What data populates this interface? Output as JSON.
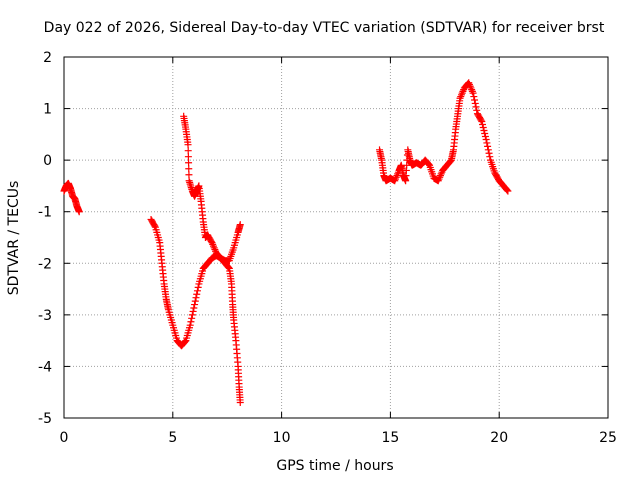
{
  "chart_data": {
    "type": "scatter",
    "title": "Day 022 of 2026, Sidereal Day-to-day VTEC variation (SDTVAR) for receiver brst",
    "xlabel": "GPS time / hours",
    "ylabel": "SDTVAR / TECUs",
    "xlim": [
      0,
      25
    ],
    "ylim": [
      -5,
      2
    ],
    "xticks": [
      0,
      5,
      10,
      15,
      20,
      25
    ],
    "yticks": [
      -5,
      -4,
      -3,
      -2,
      -1,
      0,
      1,
      2
    ],
    "grid": true,
    "marker": "+",
    "color": "#ff0000",
    "segments": [
      [
        [
          0.0,
          -0.6
        ],
        [
          0.1,
          -0.5
        ],
        [
          0.2,
          -0.45
        ],
        [
          0.3,
          -0.55
        ],
        [
          0.4,
          -0.7
        ],
        [
          0.5,
          -0.75
        ],
        [
          0.6,
          -0.9
        ],
        [
          0.7,
          -1.0
        ]
      ],
      [
        [
          4.0,
          -1.15
        ],
        [
          4.2,
          -1.3
        ],
        [
          4.4,
          -1.6
        ],
        [
          4.5,
          -2.0
        ],
        [
          4.6,
          -2.4
        ],
        [
          4.7,
          -2.7
        ],
        [
          4.8,
          -2.9
        ],
        [
          5.0,
          -3.2
        ],
        [
          5.2,
          -3.5
        ],
        [
          5.4,
          -3.6
        ],
        [
          5.6,
          -3.5
        ],
        [
          5.8,
          -3.2
        ],
        [
          6.0,
          -2.8
        ],
        [
          6.2,
          -2.4
        ],
        [
          6.4,
          -2.1
        ],
        [
          6.6,
          -2.0
        ],
        [
          6.8,
          -1.9
        ],
        [
          7.0,
          -1.85
        ],
        [
          7.2,
          -1.9
        ],
        [
          7.4,
          -1.95
        ],
        [
          7.6,
          -1.95
        ],
        [
          7.8,
          -1.7
        ],
        [
          8.0,
          -1.4
        ],
        [
          8.1,
          -1.25
        ]
      ],
      [
        [
          5.5,
          0.85
        ],
        [
          5.6,
          0.6
        ],
        [
          5.7,
          0.3
        ],
        [
          5.75,
          -0.4
        ],
        [
          5.9,
          -0.6
        ],
        [
          6.0,
          -0.7
        ],
        [
          6.1,
          -0.6
        ],
        [
          6.2,
          -0.5
        ],
        [
          6.3,
          -0.8
        ],
        [
          6.4,
          -1.2
        ],
        [
          6.5,
          -1.5
        ],
        [
          6.6,
          -1.45
        ],
        [
          6.8,
          -1.6
        ],
        [
          7.0,
          -1.8
        ],
        [
          7.2,
          -1.9
        ],
        [
          7.4,
          -2.0
        ],
        [
          7.6,
          -2.1
        ],
        [
          7.7,
          -2.4
        ],
        [
          7.75,
          -2.8
        ],
        [
          7.8,
          -3.1
        ],
        [
          7.9,
          -3.5
        ],
        [
          8.0,
          -4.0
        ],
        [
          8.05,
          -4.4
        ],
        [
          8.1,
          -4.7
        ]
      ],
      [
        [
          14.5,
          0.2
        ],
        [
          14.6,
          0.0
        ],
        [
          14.7,
          -0.3
        ],
        [
          14.8,
          -0.4
        ],
        [
          15.0,
          -0.35
        ],
        [
          15.2,
          -0.4
        ],
        [
          15.4,
          -0.2
        ],
        [
          15.5,
          -0.1
        ],
        [
          15.6,
          -0.3
        ],
        [
          15.7,
          -0.4
        ],
        [
          15.8,
          0.2
        ],
        [
          15.9,
          0.0
        ],
        [
          16.0,
          -0.1
        ],
        [
          16.2,
          -0.05
        ],
        [
          16.4,
          -0.1
        ],
        [
          16.6,
          0.0
        ],
        [
          16.8,
          -0.1
        ],
        [
          17.0,
          -0.35
        ],
        [
          17.2,
          -0.4
        ],
        [
          17.4,
          -0.2
        ],
        [
          17.6,
          -0.1
        ],
        [
          17.8,
          0.0
        ],
        [
          17.9,
          0.2
        ],
        [
          18.0,
          0.6
        ],
        [
          18.1,
          0.9
        ],
        [
          18.2,
          1.2
        ],
        [
          18.4,
          1.4
        ],
        [
          18.6,
          1.5
        ],
        [
          18.8,
          1.3
        ],
        [
          19.0,
          0.9
        ],
        [
          19.2,
          0.75
        ],
        [
          19.4,
          0.4
        ],
        [
          19.6,
          0.0
        ],
        [
          19.8,
          -0.25
        ],
        [
          20.0,
          -0.4
        ],
        [
          20.2,
          -0.5
        ],
        [
          20.4,
          -0.6
        ]
      ]
    ]
  }
}
